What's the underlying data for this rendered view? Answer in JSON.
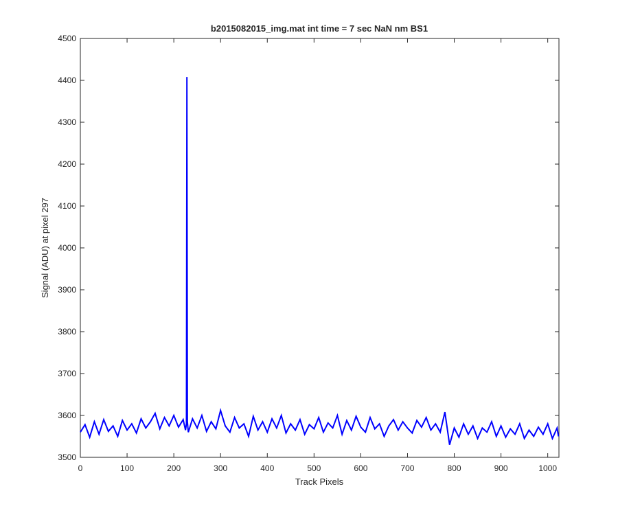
{
  "chart_data": {
    "type": "line",
    "title": "b2015082015_img.mat int time = 7 sec  NaN nm BS1",
    "x_label": "Track Pixels",
    "y_label": "Signal (ADU) at pixel 297",
    "x": [
      0,
      10,
      20,
      30,
      40,
      50,
      60,
      70,
      80,
      90,
      100,
      110,
      120,
      130,
      140,
      150,
      160,
      170,
      180,
      190,
      200,
      210,
      220,
      225,
      227,
      228,
      229,
      231,
      240,
      250,
      260,
      270,
      280,
      290,
      300,
      310,
      320,
      330,
      340,
      350,
      360,
      370,
      380,
      390,
      400,
      410,
      420,
      430,
      440,
      450,
      460,
      470,
      480,
      490,
      500,
      510,
      520,
      530,
      540,
      550,
      560,
      570,
      580,
      590,
      600,
      610,
      620,
      630,
      640,
      650,
      660,
      670,
      680,
      690,
      700,
      710,
      720,
      730,
      740,
      750,
      760,
      770,
      780,
      790,
      800,
      810,
      820,
      830,
      840,
      850,
      860,
      870,
      880,
      890,
      900,
      910,
      920,
      930,
      940,
      950,
      960,
      970,
      980,
      990,
      1000,
      1010,
      1020,
      1023
    ],
    "series": [
      {
        "color": "#0000ff",
        "values": [
          3560,
          3578,
          3548,
          3585,
          3555,
          3590,
          3562,
          3575,
          3550,
          3588,
          3565,
          3580,
          3558,
          3592,
          3570,
          3585,
          3605,
          3568,
          3595,
          3575,
          3600,
          3572,
          3590,
          3565,
          3580,
          4408,
          3585,
          3560,
          3592,
          3570,
          3600,
          3562,
          3585,
          3568,
          3612,
          3575,
          3560,
          3595,
          3570,
          3580,
          3550,
          3598,
          3565,
          3585,
          3560,
          3592,
          3570,
          3600,
          3558,
          3580,
          3565,
          3590,
          3555,
          3578,
          3568,
          3595,
          3560,
          3582,
          3570,
          3600,
          3555,
          3588,
          3565,
          3598,
          3572,
          3560,
          3595,
          3568,
          3580,
          3550,
          3575,
          3590,
          3565,
          3585,
          3570,
          3558,
          3588,
          3572,
          3595,
          3565,
          3580,
          3560,
          3608,
          3530,
          3570,
          3548,
          3580,
          3555,
          3575,
          3545,
          3570,
          3560,
          3585,
          3550,
          3575,
          3548,
          3568,
          3555,
          3580,
          3545,
          3565,
          3550,
          3572,
          3555,
          3580,
          3545,
          3570,
          3550
        ]
      }
    ],
    "xlim": [
      0,
      1024
    ],
    "xticks": [
      0,
      100,
      200,
      300,
      400,
      500,
      600,
      700,
      800,
      900,
      1000
    ],
    "ylim": [
      3500,
      4500
    ],
    "yticks": [
      3500,
      3600,
      3700,
      3800,
      3900,
      4000,
      4100,
      4200,
      4300,
      4400,
      4500
    ]
  }
}
